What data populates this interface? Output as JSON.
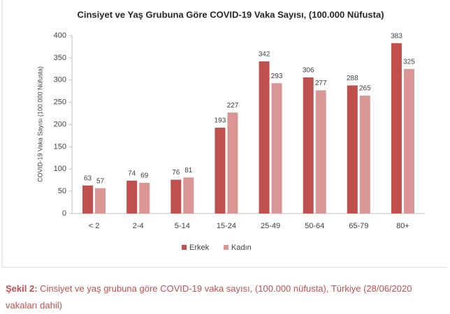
{
  "chart_data": {
    "type": "bar",
    "title": "Cinsiyet ve Yaş Grubuna Göre COVID-19 Vaka Sayısı, (100.000 Nüfusta)",
    "y_label": "COVID-19 Vaka Sayısı (100.000 Nüfusta)",
    "categories": [
      "< 2",
      "2-4",
      "5-14",
      "15-24",
      "25-49",
      "50-64",
      "65-79",
      "80+"
    ],
    "series": [
      {
        "name": "Erkek",
        "color": "#c0504d",
        "values": [
          63,
          74,
          76,
          193,
          342,
          306,
          288,
          383
        ]
      },
      {
        "name": "Kadın",
        "color": "#d99694",
        "values": [
          57,
          69,
          81,
          227,
          293,
          277,
          265,
          325
        ]
      }
    ],
    "ylim": [
      0,
      400
    ],
    "yticks": [
      0,
      50,
      100,
      150,
      200,
      250,
      300,
      350,
      400
    ],
    "grid": false,
    "legend": "bottom"
  },
  "caption": {
    "label": "Şekil 2:",
    "text": "Cinsiyet ve yaş grubuna göre COVID-19 vaka sayısı, (100.000 nüfusta), Türkiye (28/06/2020 vakaları dahil)"
  }
}
